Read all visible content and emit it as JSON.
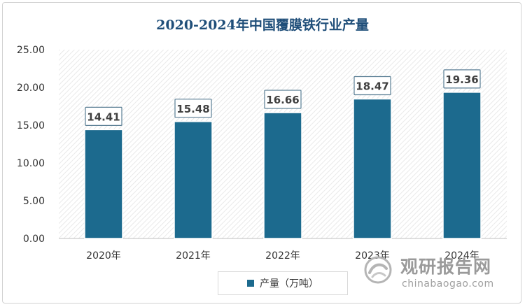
{
  "chart_data": {
    "type": "bar",
    "title": "2020-2024年中国覆膜铁行业产量",
    "categories": [
      "2020年",
      "2021年",
      "2022年",
      "2023年",
      "2024年"
    ],
    "series": [
      {
        "name": "产量（万吨）",
        "values": [
          14.41,
          15.48,
          16.66,
          18.47,
          19.36
        ],
        "color": "#1c6a8e"
      }
    ],
    "data_labels": [
      "14.41",
      "15.48",
      "16.66",
      "18.47",
      "19.36"
    ],
    "ylim": [
      0,
      25
    ],
    "yticks": [
      "0.00",
      "5.00",
      "10.00",
      "15.00",
      "20.00",
      "25.00"
    ],
    "legend_position": "bottom",
    "grid": false,
    "plot_background": "hatched"
  },
  "watermark": {
    "name": "观研报告网",
    "url": "chinabaogao.com"
  }
}
